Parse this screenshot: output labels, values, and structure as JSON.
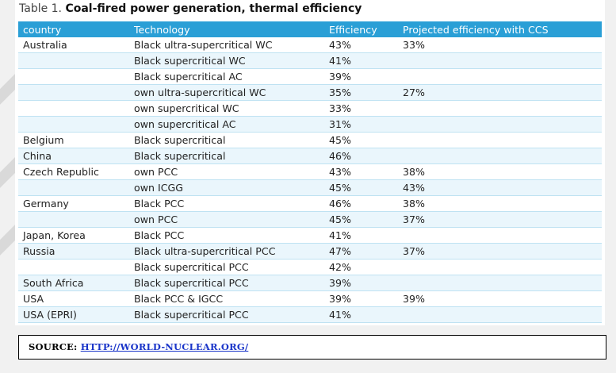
{
  "caption": {
    "number": "Table 1.",
    "title": "Coal-fired power generation, thermal efficiency"
  },
  "table": {
    "headers": [
      "country",
      "Technology",
      "Efficiency",
      "Projected efficiency with CCS"
    ],
    "rows": [
      [
        "Australia",
        "Black ultra-supercritical WC",
        "43%",
        "33%"
      ],
      [
        "",
        "Black supercritical WC",
        "41%",
        ""
      ],
      [
        "",
        "Black supercritical AC",
        "39%",
        ""
      ],
      [
        "",
        "own ultra-supercritical WC",
        "35%",
        "27%"
      ],
      [
        "",
        "own supercritical WC",
        "33%",
        ""
      ],
      [
        "",
        "own supercritical AC",
        "31%",
        ""
      ],
      [
        "Belgium",
        "Black supercritical",
        "45%",
        ""
      ],
      [
        "China",
        "Black supercritical",
        "46%",
        ""
      ],
      [
        "Czech Republic",
        "own PCC",
        "43%",
        "38%"
      ],
      [
        "",
        "own ICGG",
        "45%",
        "43%"
      ],
      [
        "Germany",
        "Black PCC",
        "46%",
        "38%"
      ],
      [
        "",
        "own PCC",
        "45%",
        "37%"
      ],
      [
        "Japan, Korea",
        "Black PCC",
        "41%",
        ""
      ],
      [
        "Russia",
        "Black ultra-supercritical PCC",
        "47%",
        "37%"
      ],
      [
        "",
        "Black supercritical PCC",
        "42%",
        ""
      ],
      [
        "South Africa",
        "Black supercritical PCC",
        "39%",
        ""
      ],
      [
        "USA",
        "Black PCC & IGCC",
        "39%",
        "39%"
      ],
      [
        "USA (EPRI)",
        "Black supercritical PCC",
        "41%",
        ""
      ]
    ]
  },
  "source": {
    "label": "SOURCE:",
    "link_text": "HTTP://WORLD-NUCLEAR.ORG/"
  },
  "colors": {
    "header_bg": "#2a9fd6",
    "row_alt": "#eaf6fc",
    "link": "#1a35c9"
  }
}
